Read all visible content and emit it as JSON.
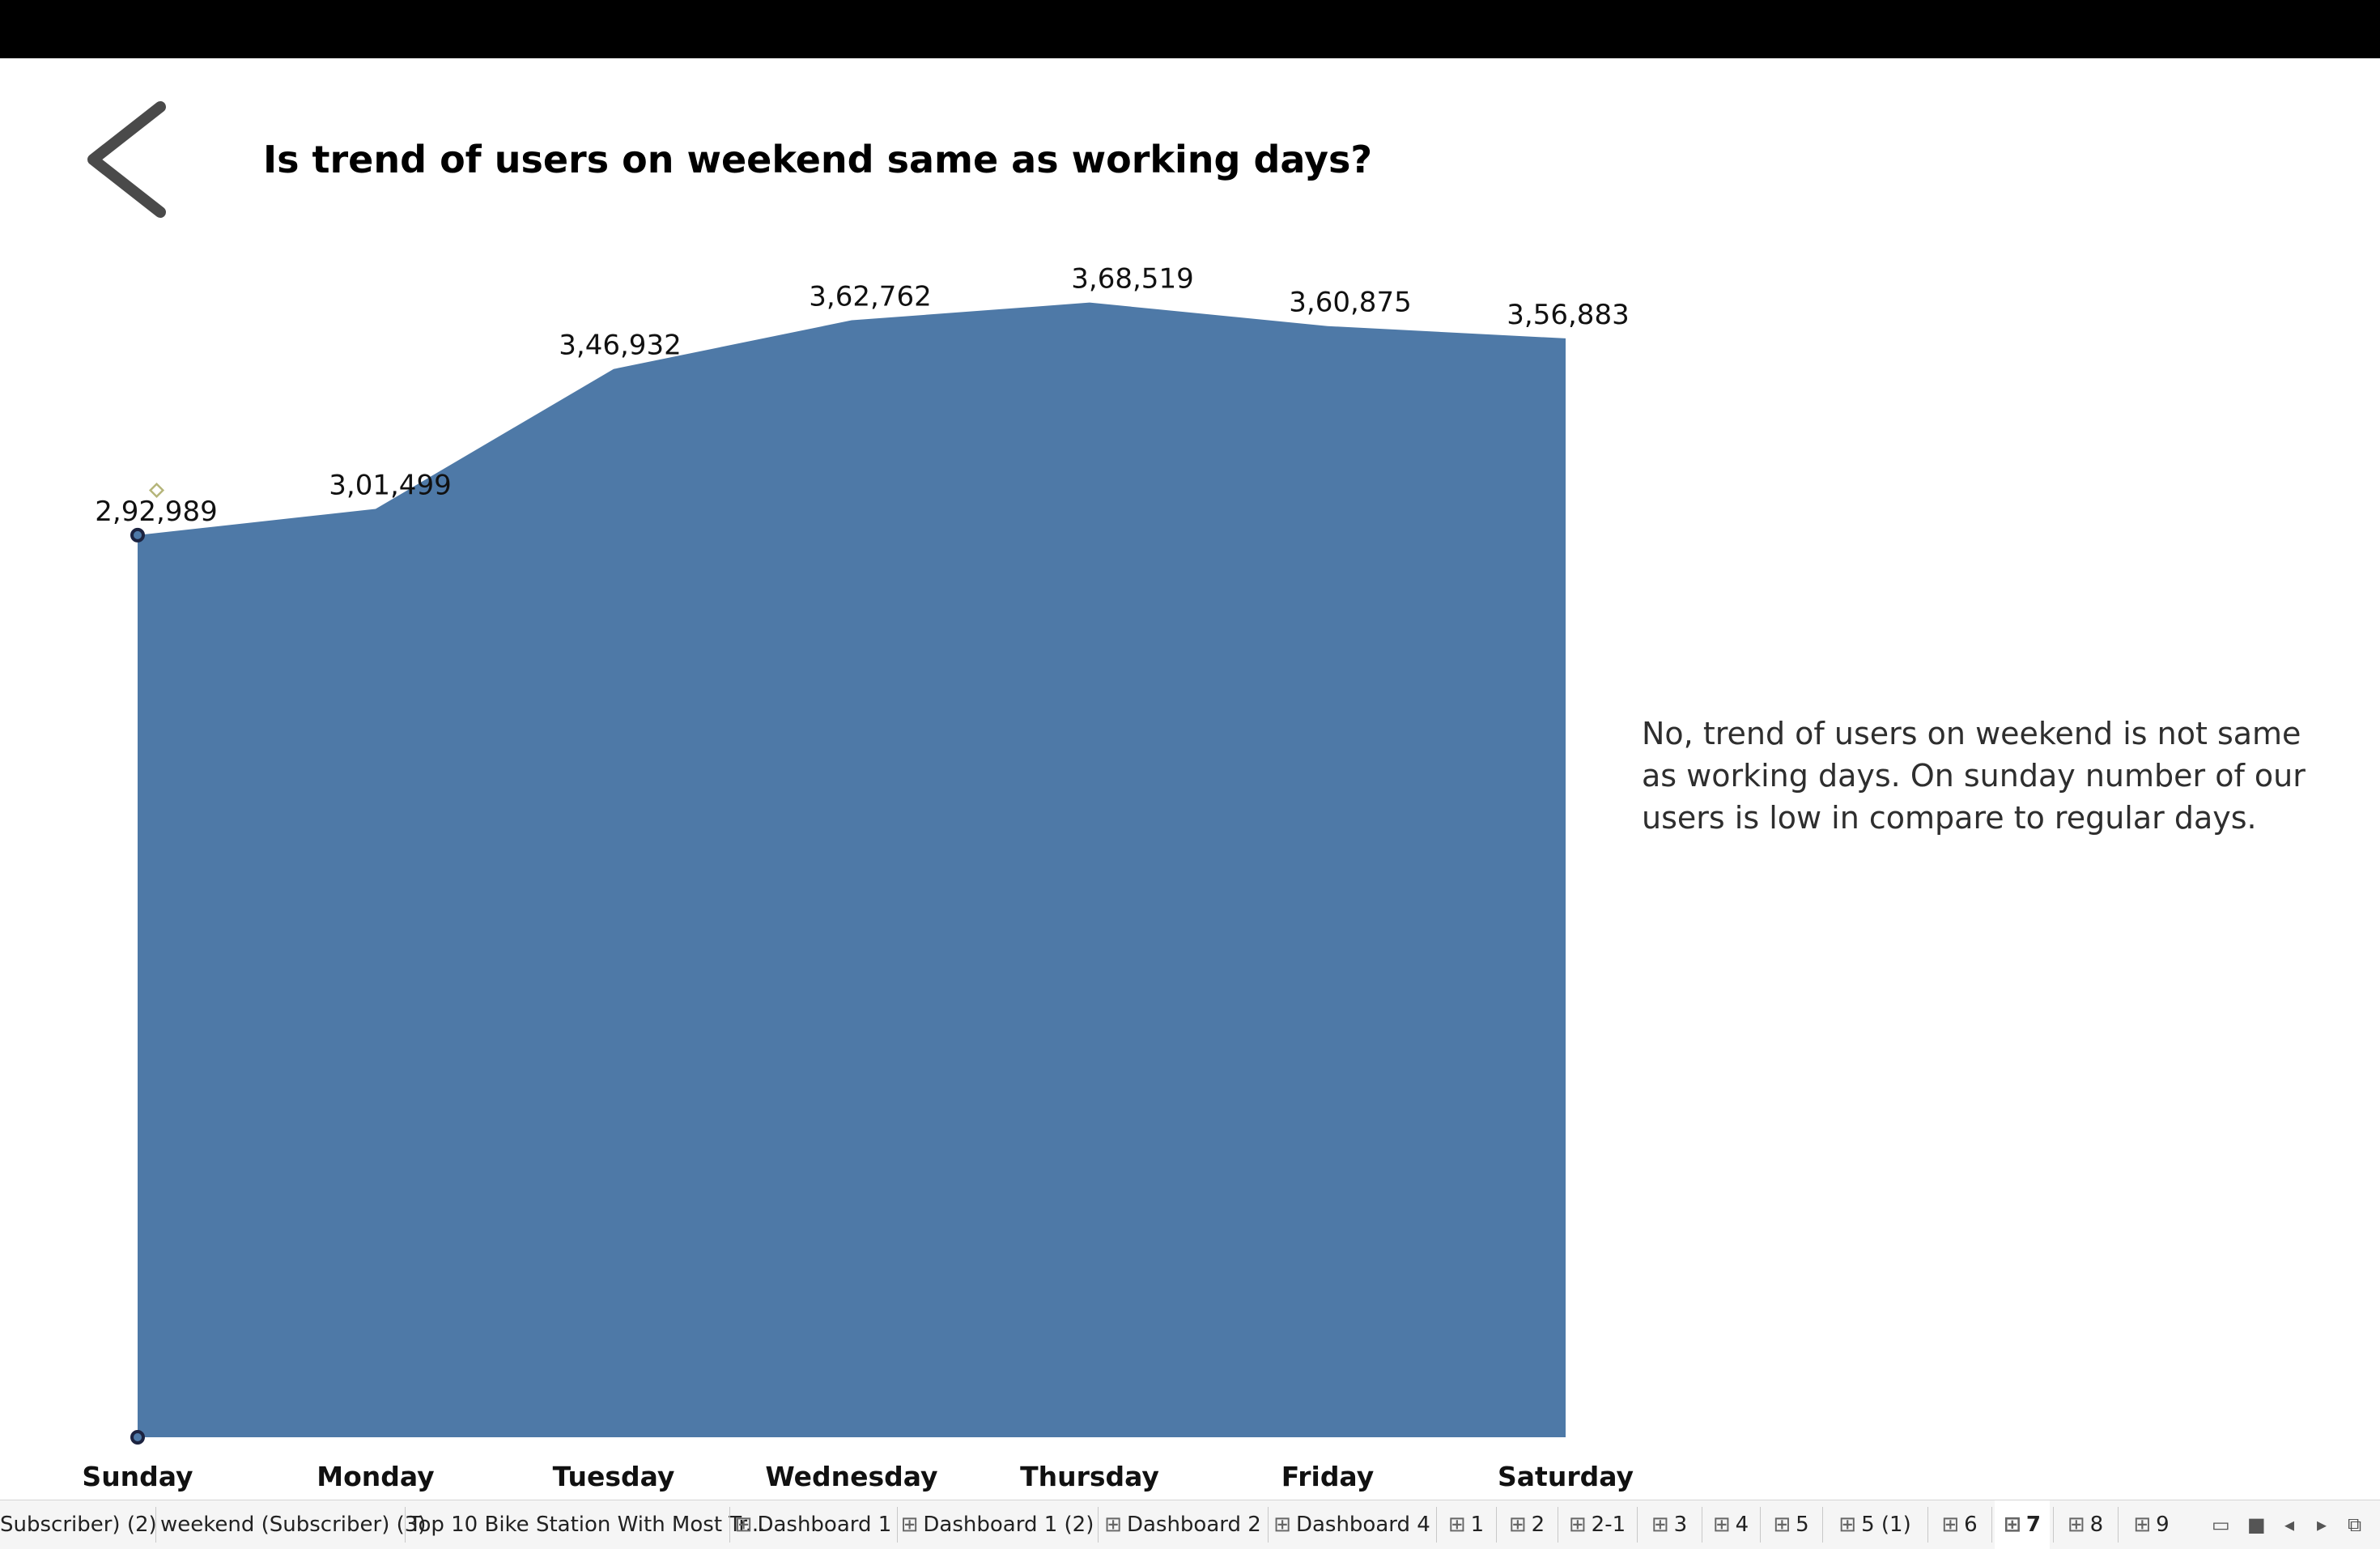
{
  "dashboard": {
    "title": "Is trend of users on weekend same as working days?",
    "note": "No, trend of users on weekend is not same as working days. On sunday number of our users is low in compare to regular days."
  },
  "icons": {
    "back": "chevron-left-icon",
    "tab": "grid-icon"
  },
  "colors": {
    "area": "#4e79a7",
    "topbar": "#000000"
  },
  "chart_data": {
    "type": "area",
    "title": "",
    "xlabel": "",
    "ylabel": "",
    "categories": [
      "Sunday",
      "Monday",
      "Tuesday",
      "Wednesday",
      "Thursday",
      "Friday",
      "Saturday"
    ],
    "values": [
      292989,
      301499,
      346932,
      362762,
      368519,
      360875,
      356883
    ],
    "data_labels": [
      "2,92,989",
      "3,01,499",
      "3,46,932",
      "3,62,762",
      "3,68,519",
      "3,60,875",
      "3,56,883"
    ],
    "ylim": [
      0,
      380000
    ],
    "grid": false,
    "legend": "none"
  },
  "tabs": [
    {
      "label": "Subscriber) (2)",
      "icon": false
    },
    {
      "label": "weekend (Subscriber) (3)",
      "icon": false
    },
    {
      "label": "Top 10 Bike Station With Most Tr...",
      "icon": false
    },
    {
      "label": "Dashboard 1",
      "icon": true
    },
    {
      "label": "Dashboard 1 (2)",
      "icon": true
    },
    {
      "label": "Dashboard 2",
      "icon": true
    },
    {
      "label": "Dashboard 4",
      "icon": true
    },
    {
      "label": "1",
      "icon": true
    },
    {
      "label": "2",
      "icon": true
    },
    {
      "label": "2-1",
      "icon": true
    },
    {
      "label": "3",
      "icon": true
    },
    {
      "label": "4",
      "icon": true
    },
    {
      "label": "5",
      "icon": true
    },
    {
      "label": "5 (1)",
      "icon": true
    },
    {
      "label": "6",
      "icon": true
    },
    {
      "label": "7",
      "icon": true,
      "active": true
    },
    {
      "label": "8",
      "icon": true
    },
    {
      "label": "9",
      "icon": true
    }
  ],
  "controls": [
    {
      "name": "show-filmstrip-icon"
    },
    {
      "name": "show-tabs-icon"
    },
    {
      "name": "scroll-left-icon"
    },
    {
      "name": "scroll-right-icon"
    },
    {
      "name": "presentation-mode-icon"
    }
  ]
}
